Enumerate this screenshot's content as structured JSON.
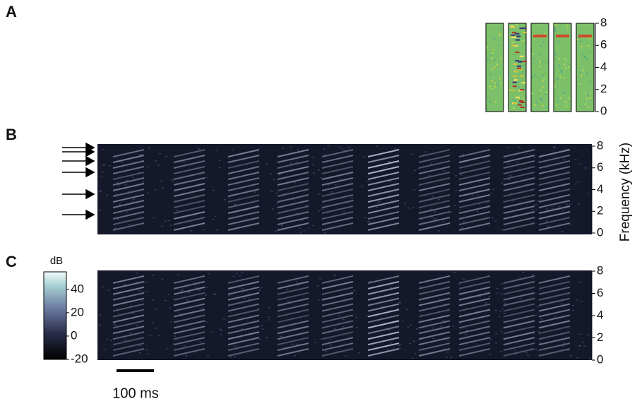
{
  "panels": {
    "a": {
      "label": "A",
      "yticks": [
        0,
        2,
        4,
        6,
        8
      ],
      "ylim": [
        0,
        8
      ]
    },
    "b": {
      "label": "B",
      "yticks": [
        0,
        2,
        4,
        6,
        8
      ],
      "ylim": [
        0,
        8
      ]
    },
    "c": {
      "label": "C",
      "yticks": [
        0,
        2,
        4,
        6,
        8
      ],
      "ylim": [
        0,
        8
      ]
    }
  },
  "y_axis_label": "Frequency (kHz)",
  "colorbar": {
    "title": "dB",
    "ticks": [
      -20,
      0,
      20,
      40
    ],
    "lim": [
      -20,
      55
    ]
  },
  "scale_bar": {
    "label": "100 ms"
  }
}
